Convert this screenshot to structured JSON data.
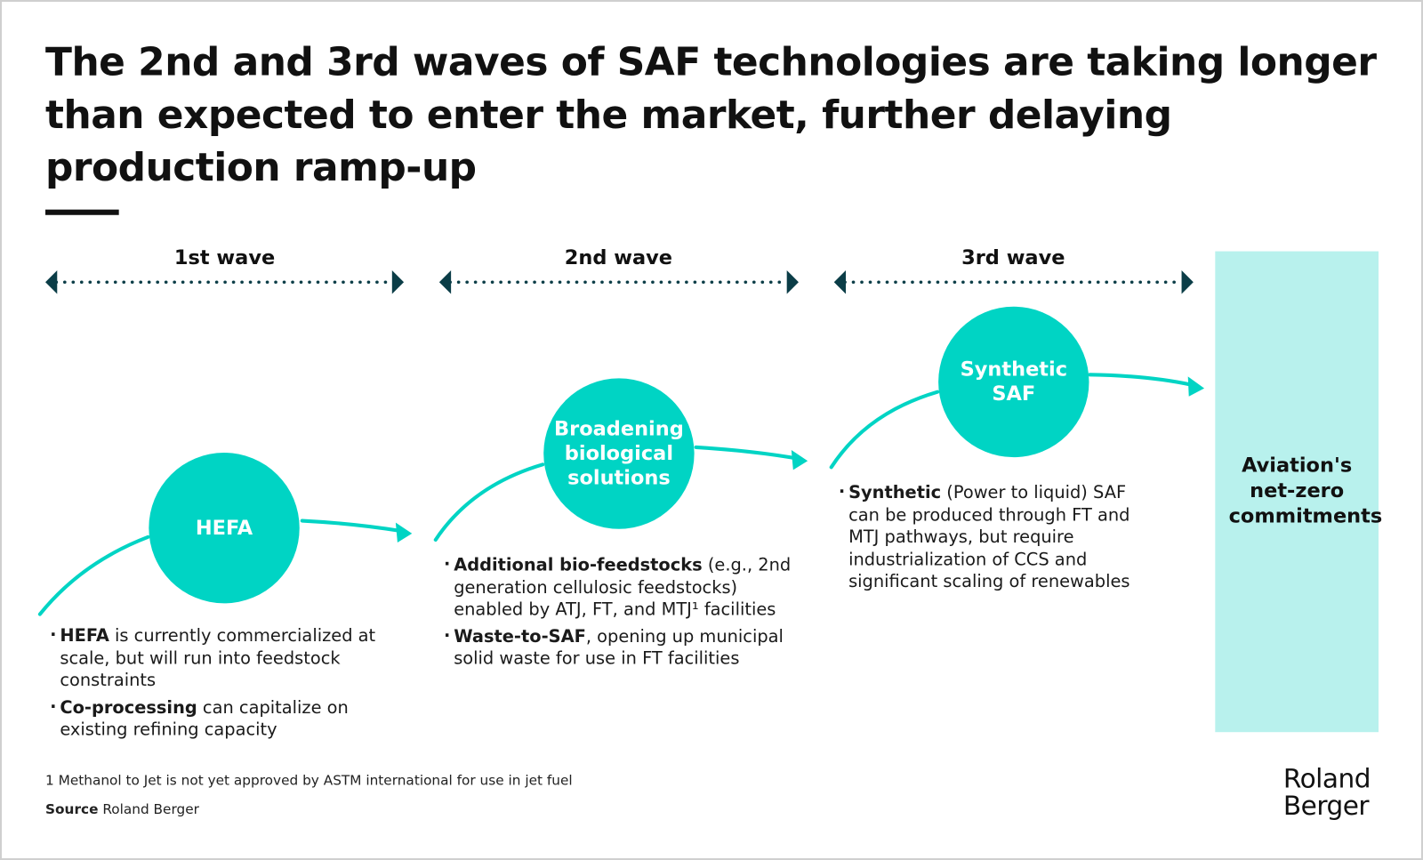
{
  "title": "The 2nd and 3rd waves of SAF technologies are taking longer than expected to enter the market, further delaying production ramp-up",
  "colors": {
    "teal": "#00d4c4",
    "light_teal": "#b8f1ed",
    "arrow_dark": "#0b3d47"
  },
  "waves": [
    {
      "label": "1st wave",
      "technology": "HEFA",
      "bullets": [
        {
          "bold": "HEFA",
          "text": " is currently commercialized at scale, but will run into feedstock constraints"
        },
        {
          "bold": "Co-processing",
          "text": " can capitalize on existing refining capacity"
        }
      ]
    },
    {
      "label": "2nd wave",
      "technology": "Broadening biological solutions",
      "bullets": [
        {
          "bold": "Additional bio-feedstocks",
          "text": " (e.g., 2nd generation cellulosic feedstocks) enabled by ATJ, FT, and MTJ¹ facilities"
        },
        {
          "bold": "Waste-to-SAF",
          "text": ", opening up municipal solid waste for use in FT facilities"
        }
      ]
    },
    {
      "label": "3rd wave",
      "technology": "Synthetic SAF",
      "bullets": [
        {
          "bold": "Synthetic",
          "text": " (Power to liquid) SAF can be produced through FT and MTJ pathways, but require industrialization of CCS and significant scaling of renewables"
        }
      ]
    }
  ],
  "goal": "Aviation's net-zero commitments",
  "footnote": "1  Methanol to Jet is not yet approved by ASTM international for use in jet fuel",
  "source_label": "Source",
  "source_value": " Roland Berger",
  "logo": "Roland Berger"
}
